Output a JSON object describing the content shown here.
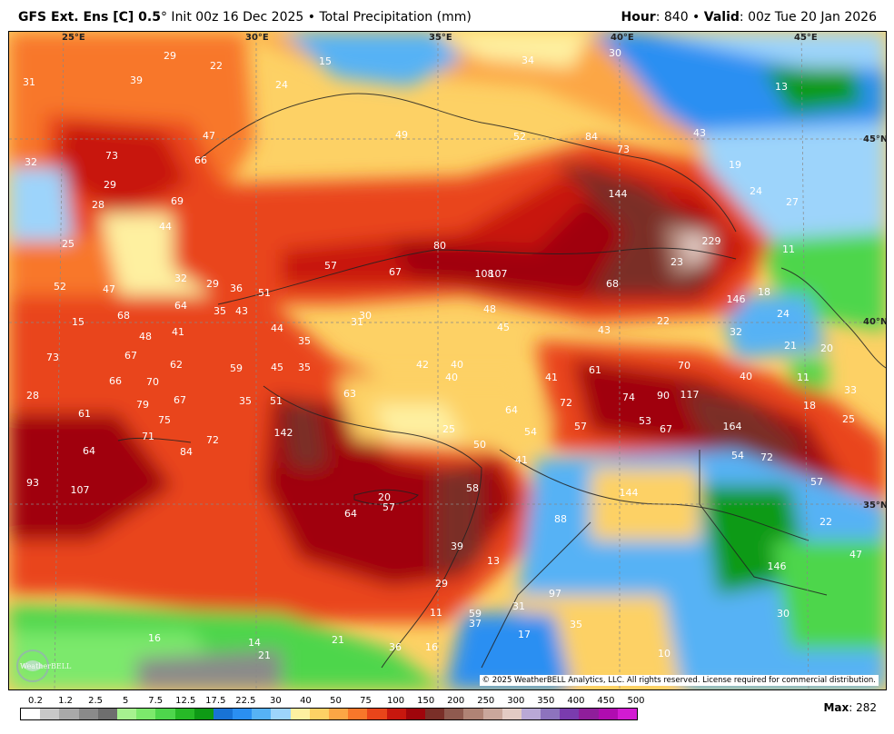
{
  "header": {
    "model": "GFS Ext.  Ens [C] 0.5",
    "degree": "°",
    "init": " Init 00z 16 Dec 2025",
    "bullet": " • ",
    "field": "Total Precipitation (mm)",
    "hour_label": "Hour",
    "hour_value": ": 840",
    "valid_label": "Valid",
    "valid_value": ": 00z Tue 20 Jan 2026"
  },
  "coords": {
    "lon_25": "25°E",
    "lon_30": "30°E",
    "lon_35": "35°E",
    "lon_40": "40°E",
    "lon_45": "45°E",
    "lat_45": "45°N",
    "lat_40": "40°N",
    "lat_35": "35°N"
  },
  "values": [
    "31",
    "39",
    "29",
    "22",
    "15",
    "24",
    "34",
    "30",
    "13",
    "32",
    "73",
    "66",
    "47",
    "49",
    "52",
    "84",
    "73",
    "43",
    "19",
    "29",
    "28",
    "69",
    "44",
    "144",
    "24",
    "27",
    "25",
    "80",
    "229",
    "11",
    "57",
    "67",
    "108",
    "107",
    "23",
    "52",
    "47",
    "32",
    "29",
    "36",
    "51",
    "68",
    "146",
    "18",
    "15",
    "68",
    "35",
    "43",
    "48",
    "64",
    "31",
    "30",
    "35",
    "44",
    "45",
    "22",
    "43",
    "32",
    "24",
    "21",
    "20",
    "73",
    "67",
    "48",
    "41",
    "62",
    "59",
    "45",
    "35",
    "42",
    "40",
    "40",
    "41",
    "61",
    "70",
    "40",
    "66",
    "70",
    "117",
    "11",
    "33",
    "28",
    "79",
    "67",
    "35",
    "51",
    "63",
    "72",
    "74",
    "90",
    "18",
    "61",
    "75",
    "64",
    "57",
    "53",
    "67",
    "164",
    "25",
    "71",
    "84",
    "72",
    "142",
    "25",
    "54",
    "54",
    "72",
    "64",
    "50",
    "41",
    "57",
    "93",
    "107",
    "58",
    "144",
    "20",
    "57",
    "64",
    "88",
    "22",
    "47",
    "39",
    "146",
    "13",
    "29",
    "97",
    "31",
    "30",
    "11",
    "59",
    "37",
    "35",
    "16",
    "17",
    "14",
    "21",
    "16",
    "36",
    "21",
    "10",
    "20"
  ],
  "copyright": "© 2025 WeatherBELL Analytics, LLC. All rights reserved. License required for commercial distribution.",
  "logo_text": "WeatherBELL",
  "legend": {
    "ticks": [
      "0.2",
      "1.2",
      "2.5",
      "5",
      "7.5",
      "12.5",
      "17.5",
      "22.5",
      "30",
      "40",
      "50",
      "75",
      "100",
      "150",
      "200",
      "250",
      "300",
      "350",
      "400",
      "450",
      "500"
    ],
    "colors": [
      "#ffffff",
      "#c8c8c8",
      "#a9a9a9",
      "#8a8a8a",
      "#6e6e6e",
      "#a6f28f",
      "#7ce96c",
      "#4ed64c",
      "#27b927",
      "#0e9a15",
      "#1873d6",
      "#2a8ff2",
      "#56b2f5",
      "#9dd4fb",
      "#fef0a0",
      "#fdd165",
      "#fca645",
      "#f8772a",
      "#e9451a",
      "#c8170e",
      "#a0050b",
      "#7a2f28",
      "#8f5a4f",
      "#b08375",
      "#caa79c",
      "#e3cbc4",
      "#b9a8d6",
      "#8d73bd",
      "#7a3cae",
      "#8f1e9b",
      "#b00cb0",
      "#d21bd2"
    ]
  },
  "max_label": "Max",
  "max_value": ": 282"
}
